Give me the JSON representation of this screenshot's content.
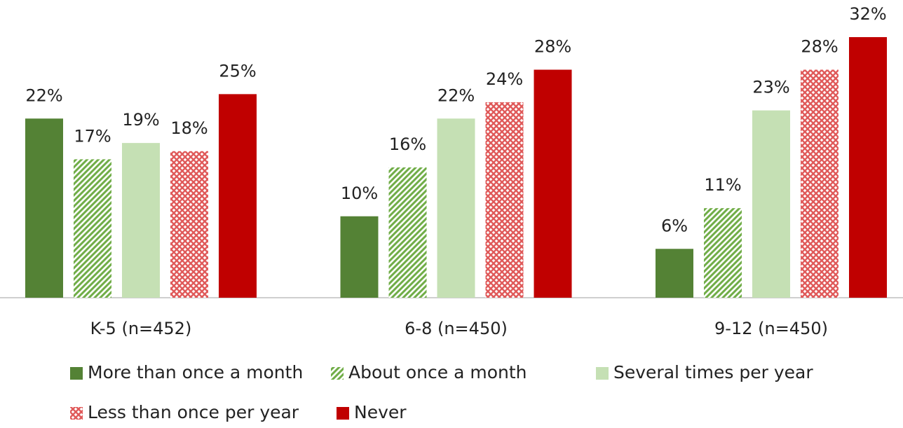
{
  "chart_data": {
    "type": "bar",
    "categories": [
      "K-5 (n=452)",
      "6-8 (n=450)",
      "9-12 (n=450)"
    ],
    "series": [
      {
        "name": "More than once a month",
        "color": "#548235",
        "pattern": "solid",
        "values": [
          22,
          10,
          6
        ],
        "value_labels": [
          "22%",
          "10%",
          "6%"
        ]
      },
      {
        "name": "About once a month",
        "color": "#70ad47",
        "pattern": "stripes",
        "values": [
          17,
          16,
          11
        ],
        "value_labels": [
          "17%",
          "16%",
          "11%"
        ]
      },
      {
        "name": "Several times per year",
        "color": "#c5e0b4",
        "pattern": "solid",
        "values": [
          19,
          22,
          23
        ],
        "value_labels": [
          "19%",
          "22%",
          "23%"
        ]
      },
      {
        "name": "Less than once per year",
        "color": "#e05a5a",
        "pattern": "crosshatch",
        "values": [
          18,
          24,
          28
        ],
        "value_labels": [
          "18%",
          "24%",
          "28%"
        ]
      },
      {
        "name": "Never",
        "color": "#c00000",
        "pattern": "solid",
        "values": [
          25,
          28,
          32
        ],
        "value_labels": [
          "25%",
          "28%",
          "32%"
        ]
      }
    ]
  }
}
